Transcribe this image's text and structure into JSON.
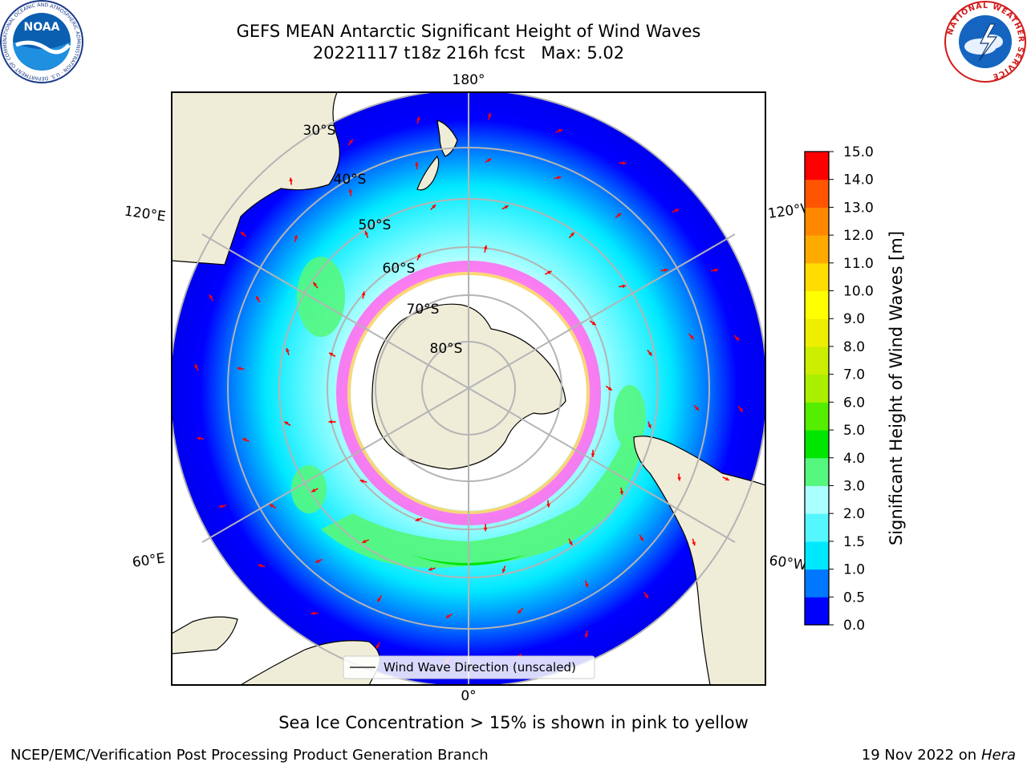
{
  "title": {
    "line1": "GEFS MEAN Antarctic Significant Height of Wind Waves",
    "line2": "20221117 t18z 216h fcst   Max: 5.02"
  },
  "logos": {
    "left": "NOAA",
    "left_ring_text": "NATIONAL OCEANIC AND ATMOSPHERIC ADMINISTRATION · U.S. DEPARTMENT OF COMMERCE",
    "right_ring_text": "NATIONAL WEATHER SERVICE"
  },
  "map": {
    "projection": "south-polar-stereographic",
    "longitude_labels": {
      "top": "180°",
      "bottom": "0°",
      "left_upper": "120°E",
      "left_lower": "60°E",
      "right_upper": "120°W",
      "right_lower": "60°W"
    },
    "latitude_labels": [
      "30°S",
      "40°S",
      "50°S",
      "60°S",
      "70°S",
      "80°S"
    ],
    "legend_entry": "Wind Wave Direction (unscaled)",
    "arrow_color": "#ff0000",
    "land_color": "#efedd8"
  },
  "colorbar": {
    "label": "Significant Height of Wind Waves [m]",
    "ticks": [
      "0.0",
      "0.5",
      "1.0",
      "1.5",
      "2.0",
      "3.0",
      "4.0",
      "5.0",
      "6.0",
      "7.0",
      "8.0",
      "9.0",
      "10.0",
      "11.0",
      "12.0",
      "13.0",
      "14.0",
      "15.0"
    ],
    "colors": [
      "#0000ff",
      "#0077ff",
      "#00e8ff",
      "#55f7ff",
      "#aaffff",
      "#55f77f",
      "#00e600",
      "#55ee00",
      "#aaee00",
      "#ccee00",
      "#eeee00",
      "#ffff00",
      "#ffdd00",
      "#ffaa00",
      "#ff8800",
      "#ff5500",
      "#ff0000"
    ]
  },
  "caption": "Sea Ice Concentration > 15% is shown in pink to yellow",
  "footer": {
    "left": "NCEP/EMC/Verification Post Processing Product Generation Branch",
    "right_date": "19 Nov 2022 on",
    "right_machine": "Hera"
  }
}
